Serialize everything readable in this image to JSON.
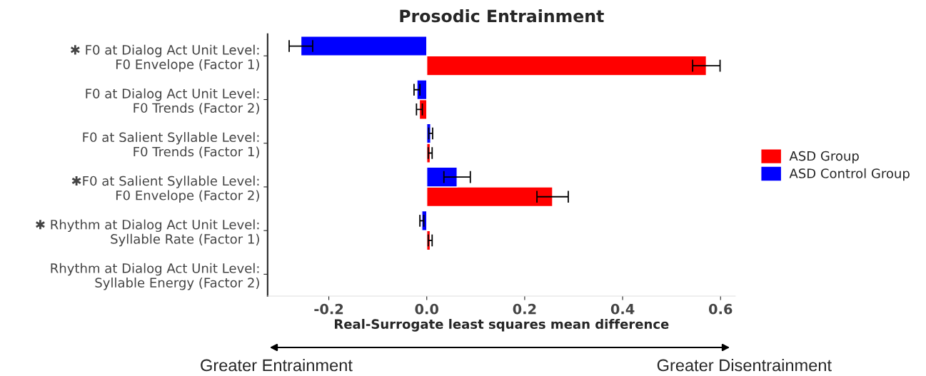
{
  "chart_data": {
    "type": "bar",
    "orientation": "horizontal",
    "title": "Prosodic Entrainment",
    "xlabel": "Real-Surrogate least squares mean difference",
    "categories": [
      "✱ F0 at Dialog Act Unit Level:\nF0 Envelope (Factor 1)",
      "F0 at Dialog Act Unit Level:\nF0 Trends (Factor 2)",
      "F0 at Salient Syllable Level:\nF0 Trends (Factor 1)",
      "✱F0 at Salient Syllable Level:\nF0 Envelope (Factor 2)",
      "✱ Rhythm at Dialog Act Unit Level:\nSyllable Rate (Factor 1)",
      "Rhythm at Dialog Act Unit Level:\nSyllable Energy (Factor 2)"
    ],
    "series": [
      {
        "name": "ASD Group",
        "color": "#ff0000",
        "values": [
          0.571,
          -0.015,
          0.007,
          0.257,
          0.007,
          null
        ],
        "errors": [
          0.028,
          0.006,
          0.004,
          0.032,
          0.004,
          null
        ]
      },
      {
        "name": "ASD Control Group",
        "color": "#0000ff",
        "values": [
          -0.257,
          -0.02,
          0.008,
          0.062,
          -0.01,
          null
        ],
        "errors": [
          0.024,
          0.006,
          0.004,
          0.027,
          0.004,
          null
        ]
      }
    ],
    "xlim": [
      -0.325,
      0.63
    ],
    "xticks": [
      -0.2,
      {
        "value": 0,
        "label": "0.0"
      },
      0.2,
      0.4,
      0.6
    ],
    "legend": "right",
    "grid": false,
    "annotations": [
      "Greater Entrainment",
      "Greater Disentrainment"
    ]
  }
}
